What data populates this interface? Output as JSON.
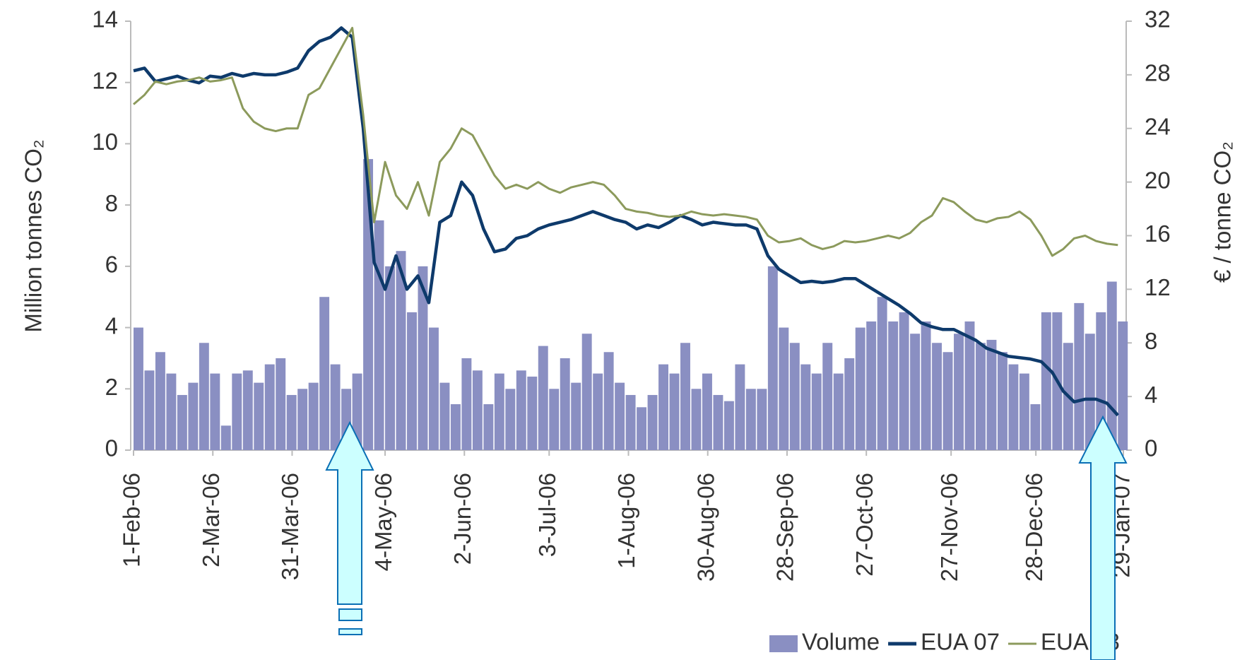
{
  "chart_data": {
    "type": "combo",
    "y_label": "Million tonnes CO₂",
    "y2_label": "€ / tonne CO₂",
    "x": [
      0,
      4,
      8,
      12,
      16,
      20,
      24,
      28,
      32,
      36,
      40,
      44,
      48,
      52,
      56,
      60,
      64,
      68,
      72,
      76,
      80,
      84,
      88,
      92,
      96,
      100,
      104,
      108,
      112,
      116,
      120,
      124,
      128,
      132,
      136,
      140,
      144,
      148,
      152,
      156,
      160,
      164,
      168,
      172,
      176,
      180,
      184,
      188,
      192,
      196,
      200,
      204,
      208,
      212,
      216,
      220,
      224,
      228,
      232,
      236,
      240,
      244,
      248,
      252,
      256,
      260,
      264,
      268,
      272,
      276,
      280,
      284,
      288,
      292,
      296,
      300,
      304,
      308,
      312,
      316,
      320,
      324,
      328,
      332,
      336,
      340,
      344,
      348,
      352,
      356,
      360
    ],
    "xlim": [
      0,
      362
    ],
    "xticks": [
      {
        "value": 0,
        "label": "1-Feb-06"
      },
      {
        "value": 29,
        "label": "2-Mar-06"
      },
      {
        "value": 58,
        "label": "31-Mar-06"
      },
      {
        "value": 92,
        "label": "4-May-06"
      },
      {
        "value": 121,
        "label": "2-Jun-06"
      },
      {
        "value": 152,
        "label": "3-Jul-06"
      },
      {
        "value": 181,
        "label": "1-Aug-06"
      },
      {
        "value": 210,
        "label": "30-Aug-06"
      },
      {
        "value": 239,
        "label": "28-Sep-06"
      },
      {
        "value": 268,
        "label": "27-Oct-06"
      },
      {
        "value": 299,
        "label": "27-Nov-06"
      },
      {
        "value": 330,
        "label": "28-Dec-06"
      },
      {
        "value": 362,
        "label": "29-Jan-07"
      }
    ],
    "ylim": [
      0,
      14
    ],
    "yticks": [
      0,
      2,
      4,
      6,
      8,
      10,
      12,
      14
    ],
    "y2lim": [
      0,
      32
    ],
    "y2ticks": [
      0,
      4,
      8,
      12,
      16,
      20,
      24,
      28,
      32
    ],
    "legend": "bottom-right",
    "series": [
      {
        "name": "Volume",
        "type": "bar",
        "color": "#8a8fc2",
        "values": [
          4.0,
          2.6,
          3.2,
          2.5,
          1.8,
          2.2,
          3.5,
          2.5,
          0.8,
          2.5,
          2.6,
          2.2,
          2.8,
          3.0,
          1.8,
          2.0,
          2.2,
          5.0,
          2.8,
          2.0,
          2.5,
          9.5,
          7.5,
          6.0,
          6.5,
          4.5,
          6.0,
          4.0,
          2.2,
          1.5,
          3.0,
          2.6,
          1.5,
          2.5,
          2.0,
          2.6,
          2.4,
          3.4,
          2.0,
          3.0,
          2.2,
          3.8,
          2.5,
          3.2,
          2.2,
          1.8,
          1.4,
          1.8,
          2.8,
          2.5,
          3.5,
          2.0,
          2.5,
          1.8,
          1.6,
          2.8,
          2.0,
          2.0,
          6.0,
          4.0,
          3.5,
          2.8,
          2.5,
          3.5,
          2.5,
          3.0,
          4.0,
          4.2,
          5.0,
          4.2,
          4.5,
          3.8,
          4.2,
          3.5,
          3.2,
          3.8,
          4.2,
          3.5,
          3.6,
          3.2,
          2.8,
          2.5,
          1.5,
          4.5,
          4.5,
          3.5,
          4.8,
          3.8,
          4.5,
          5.5,
          4.2
        ]
      },
      {
        "name": "EUA 07",
        "type": "line",
        "axis": "y2",
        "color": "#0e3a6b",
        "values": [
          28.3,
          28.5,
          27.5,
          27.7,
          27.9,
          27.6,
          27.4,
          27.9,
          27.8,
          28.1,
          27.9,
          28.1,
          28.0,
          28.0,
          28.2,
          28.5,
          29.8,
          30.5,
          30.8,
          31.5,
          30.8,
          24,
          14,
          12,
          14.5,
          12,
          13,
          11,
          17,
          17.5,
          20,
          19,
          16.5,
          14.8,
          15,
          15.8,
          16,
          16.5,
          16.8,
          17,
          17.2,
          17.5,
          17.8,
          17.5,
          17.2,
          17.0,
          16.5,
          16.8,
          16.6,
          17,
          17.5,
          17.2,
          16.8,
          17,
          16.9,
          16.8,
          16.8,
          16.5,
          14.5,
          13.5,
          13,
          12.5,
          12.6,
          12.5,
          12.6,
          12.8,
          12.8,
          12.3,
          11.8,
          11.3,
          10.8,
          10.2,
          9.5,
          9.2,
          9.0,
          9.0,
          8.6,
          8.2,
          7.6,
          7.3,
          7.0,
          6.9,
          6.8,
          6.6,
          5.8,
          4.4,
          3.6,
          3.8,
          3.8,
          3.5,
          2.6
        ]
      },
      {
        "name": "EUA 08",
        "type": "line",
        "axis": "y2",
        "color": "#8c9a5c",
        "values": [
          25.8,
          26.5,
          27.5,
          27.3,
          27.5,
          27.6,
          27.8,
          27.5,
          27.6,
          27.8,
          25.5,
          24.5,
          24.0,
          23.8,
          24.0,
          24.0,
          26.5,
          27.0,
          28.5,
          30.0,
          31.5,
          25,
          17,
          21.5,
          19,
          18,
          20,
          17.5,
          21.5,
          22.5,
          24,
          23.5,
          22,
          20.5,
          19.5,
          19.8,
          19.5,
          20,
          19.5,
          19.2,
          19.6,
          19.8,
          20,
          19.8,
          19,
          18,
          17.8,
          17.7,
          17.5,
          17.4,
          17.5,
          17.8,
          17.6,
          17.5,
          17.6,
          17.5,
          17.4,
          17.2,
          16,
          15.5,
          15.6,
          15.8,
          15.3,
          15,
          15.2,
          15.6,
          15.5,
          15.6,
          15.8,
          16,
          15.8,
          16.2,
          17,
          17.5,
          18.8,
          18.5,
          17.8,
          17.2,
          17,
          17.3,
          17.4,
          17.8,
          17.2,
          16,
          14.5,
          15,
          15.8,
          16,
          15.6,
          15.4,
          15.3
        ]
      }
    ]
  }
}
